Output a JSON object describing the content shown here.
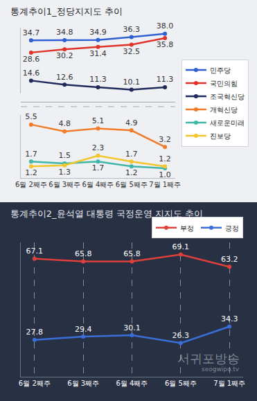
{
  "chart_data": [
    {
      "type": "line",
      "title": "통계추이1_정당지지도 추이",
      "categories": [
        "6월 2째주",
        "6월 3째주",
        "6월 4째주",
        "6월 5째주",
        "7월 1째주"
      ],
      "series": [
        {
          "name": "민주당",
          "color": "#2f5fd0",
          "values": [
            34.7,
            34.8,
            34.9,
            36.3,
            38.0
          ],
          "value_labels": [
            "34.7",
            "34.8",
            "34.9",
            "36.3",
            "38.0"
          ]
        },
        {
          "name": "국민의힘",
          "color": "#e0342b",
          "values": [
            28.6,
            30.2,
            31.4,
            32.5,
            35.8
          ],
          "value_labels": [
            "28.6",
            "30.2",
            "31.4",
            "32.5",
            "35.8"
          ]
        },
        {
          "name": "조국혁신당",
          "color": "#1f2a5a",
          "values": [
            14.6,
            12.6,
            11.3,
            10.1,
            11.3
          ],
          "value_labels": [
            "14.6",
            "12.6",
            "11.3",
            "10.1",
            "11.3"
          ]
        },
        {
          "name": "개혁신당",
          "color": "#f07c2a",
          "axis": "y2",
          "values": [
            5.5,
            4.8,
            5.1,
            4.9,
            3.2
          ],
          "value_labels": [
            "5.5",
            "4.8",
            "5.1",
            "4.9",
            "3.2"
          ]
        },
        {
          "name": "새로운미래",
          "color": "#3fb6a8",
          "axis": "y2",
          "values": [
            1.7,
            1.5,
            1.7,
            1.2,
            1.0
          ],
          "value_labels": [
            "1.7",
            "1.5",
            "1.7",
            "1.2",
            "1.0"
          ]
        },
        {
          "name": "진보당",
          "color": "#f2c62c",
          "axis": "y2",
          "values": [
            1.2,
            1.3,
            2.3,
            1.7,
            1.2
          ],
          "value_labels": [
            "1.2",
            "1.3",
            "2.3",
            "1.7",
            "1.2"
          ]
        }
      ],
      "ylim": [
        8,
        41
      ],
      "y2lim": [
        0,
        6.5
      ],
      "tick_labels": "x",
      "grid": false,
      "legend": "right",
      "data_labels": true,
      "marker": "circle",
      "line_style": "solid"
    },
    {
      "type": "line",
      "title": "통계추이2_윤석열 대통령 국정운영 지지도 추이",
      "categories": [
        "6월 2째주",
        "6월 3째주",
        "6월 4째주",
        "6월 5째주",
        "7월 1째주"
      ],
      "series": [
        {
          "name": "부정",
          "color": "#e0403a",
          "values": [
            67.1,
            65.8,
            65.8,
            69.1,
            63.2
          ],
          "value_labels": [
            "67.1",
            "65.8",
            "65.8",
            "69.1",
            "63.2"
          ]
        },
        {
          "name": "긍정",
          "color": "#3a6fd8",
          "values": [
            27.8,
            29.4,
            30.1,
            26.3,
            34.3
          ],
          "value_labels": [
            "27.8",
            "29.4",
            "30.1",
            "26.3",
            "34.3"
          ]
        }
      ],
      "ylim": [
        10,
        75
      ],
      "tick_labels": "x",
      "grid": true,
      "legend": "top right",
      "data_labels": true,
      "marker": "circle",
      "line_style": "solid",
      "annotations": [
        "서귀포방송",
        "seogwipo.tv"
      ]
    }
  ]
}
